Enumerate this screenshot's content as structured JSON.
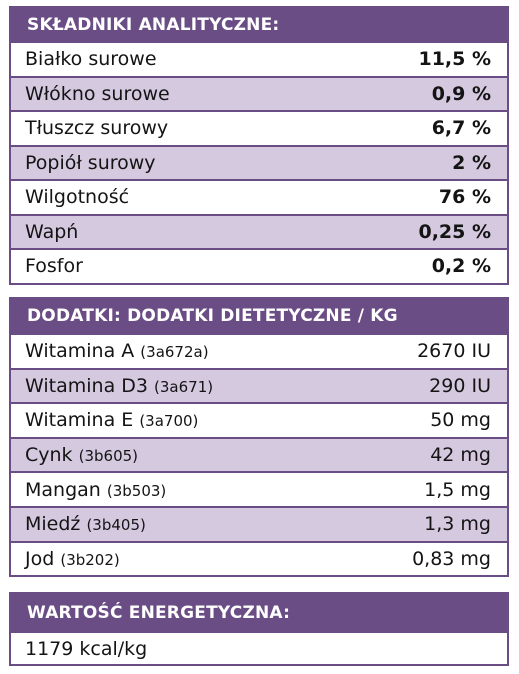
{
  "analytical": {
    "title": "SKŁADNIKI ANALITYCZNE:",
    "rows": [
      {
        "label": "Białko surowe",
        "value": "11,5 %"
      },
      {
        "label": "Włókno surowe",
        "value": "0,9 %"
      },
      {
        "label": "Tłuszcz surowy",
        "value": "6,7 %"
      },
      {
        "label": "Popiół surowy",
        "value": "2 %"
      },
      {
        "label": "Wilgotność",
        "value": "76 %"
      },
      {
        "label": "Wapń",
        "value": "0,25 %"
      },
      {
        "label": "Fosfor",
        "value": "0,2 %"
      }
    ]
  },
  "additives": {
    "title": "DODATKI: DODATKI DIETETYCZNE / KG",
    "rows": [
      {
        "label": "Witamina A",
        "code": "(3a672a)",
        "value": "2670 IU"
      },
      {
        "label": "Witamina D3",
        "code": "(3a671)",
        "value": "290 IU"
      },
      {
        "label": "Witamina E",
        "code": "(3a700)",
        "value": "50 mg"
      },
      {
        "label": "Cynk",
        "code": "(3b605)",
        "value": "42 mg"
      },
      {
        "label": "Mangan",
        "code": "(3b503)",
        "value": "1,5 mg"
      },
      {
        "label": "Miedź",
        "code": "(3b405)",
        "value": "1,3 mg"
      },
      {
        "label": "Jod",
        "code": "(3b202)",
        "value": "0,83 mg"
      }
    ]
  },
  "energy": {
    "title": "WARTOŚĆ ENERGETYCZNA:",
    "value": "1179 kcal/kg"
  },
  "colors": {
    "header": "#6b4d86",
    "shade": "#d5c9e0"
  }
}
